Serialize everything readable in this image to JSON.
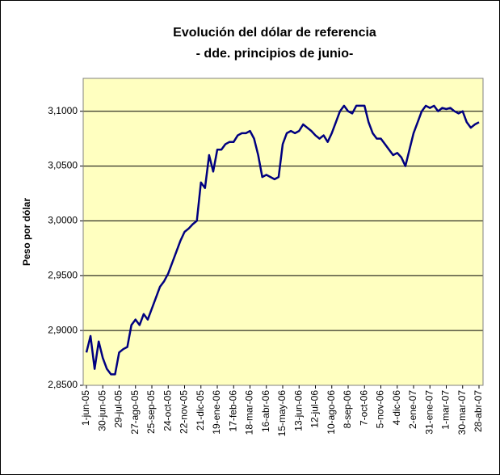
{
  "chart_data": {
    "type": "line",
    "title": "Evolución del dólar de referencia",
    "subtitle": "- dde. principios de junio-",
    "y_label": "Peso por dólar",
    "categories": [
      "1-jun-05",
      null,
      null,
      null,
      "30-jun-05",
      null,
      null,
      null,
      "29-jul-05",
      null,
      null,
      null,
      "27-ago-05",
      null,
      null,
      null,
      "25-sep-05",
      null,
      null,
      null,
      "24-oct-05",
      null,
      null,
      null,
      "22-nov-05",
      null,
      null,
      null,
      "21-dic-05",
      null,
      null,
      null,
      "19-ene-06",
      null,
      null,
      null,
      "17-feb-06",
      null,
      null,
      null,
      "18-mar-06",
      null,
      null,
      null,
      "16-abr-06",
      null,
      null,
      null,
      "15-may-06",
      null,
      null,
      null,
      "13-jun-06",
      null,
      null,
      null,
      "12-jul-06",
      null,
      null,
      null,
      "10-ago-06",
      null,
      null,
      null,
      "8-sep-06",
      null,
      null,
      null,
      "7-oct-06",
      null,
      null,
      null,
      "5-nov-06",
      null,
      null,
      null,
      "4-dic-06",
      null,
      null,
      null,
      "2-ene-07",
      null,
      null,
      null,
      "31-ene-07",
      null,
      null,
      null,
      "1-mar-07",
      null,
      null,
      null,
      "30-mar-07",
      null,
      null,
      null,
      "28-abr-07"
    ],
    "series": [
      {
        "name": "Peso por dólar",
        "color": "#000080",
        "values": [
          2.88,
          2.895,
          2.865,
          2.89,
          2.875,
          2.865,
          2.86,
          2.86,
          2.88,
          2.883,
          2.885,
          2.905,
          2.91,
          2.905,
          2.915,
          2.91,
          2.92,
          2.93,
          2.94,
          2.945,
          2.952,
          2.962,
          2.972,
          2.982,
          2.99,
          2.993,
          2.997,
          3.0,
          3.035,
          3.03,
          3.06,
          3.045,
          3.065,
          3.065,
          3.07,
          3.072,
          3.072,
          3.078,
          3.08,
          3.08,
          3.082,
          3.075,
          3.06,
          3.04,
          3.042,
          3.04,
          3.038,
          3.04,
          3.07,
          3.08,
          3.082,
          3.08,
          3.082,
          3.088,
          3.085,
          3.082,
          3.078,
          3.075,
          3.078,
          3.072,
          3.08,
          3.09,
          3.1,
          3.105,
          3.1,
          3.098,
          3.105,
          3.105,
          3.105,
          3.09,
          3.08,
          3.075,
          3.075,
          3.07,
          3.065,
          3.06,
          3.062,
          3.058,
          3.05,
          3.065,
          3.08,
          3.09,
          3.1,
          3.105,
          3.103,
          3.105,
          3.1,
          3.103,
          3.102,
          3.103,
          3.1,
          3.098,
          3.1,
          3.09,
          3.085,
          3.088,
          3.09
        ]
      }
    ],
    "ylim": [
      2.85,
      3.13
    ],
    "yticks": [
      {
        "value": 2.85,
        "label": "2,8500"
      },
      {
        "value": 2.9,
        "label": "2,9000"
      },
      {
        "value": 2.95,
        "label": "2,9500"
      },
      {
        "value": 3.0,
        "label": "3,0000"
      },
      {
        "value": 3.05,
        "label": "3,0500"
      },
      {
        "value": 3.1,
        "label": "3,1000"
      }
    ],
    "grid": true,
    "plot_color": "#ffffc0"
  }
}
